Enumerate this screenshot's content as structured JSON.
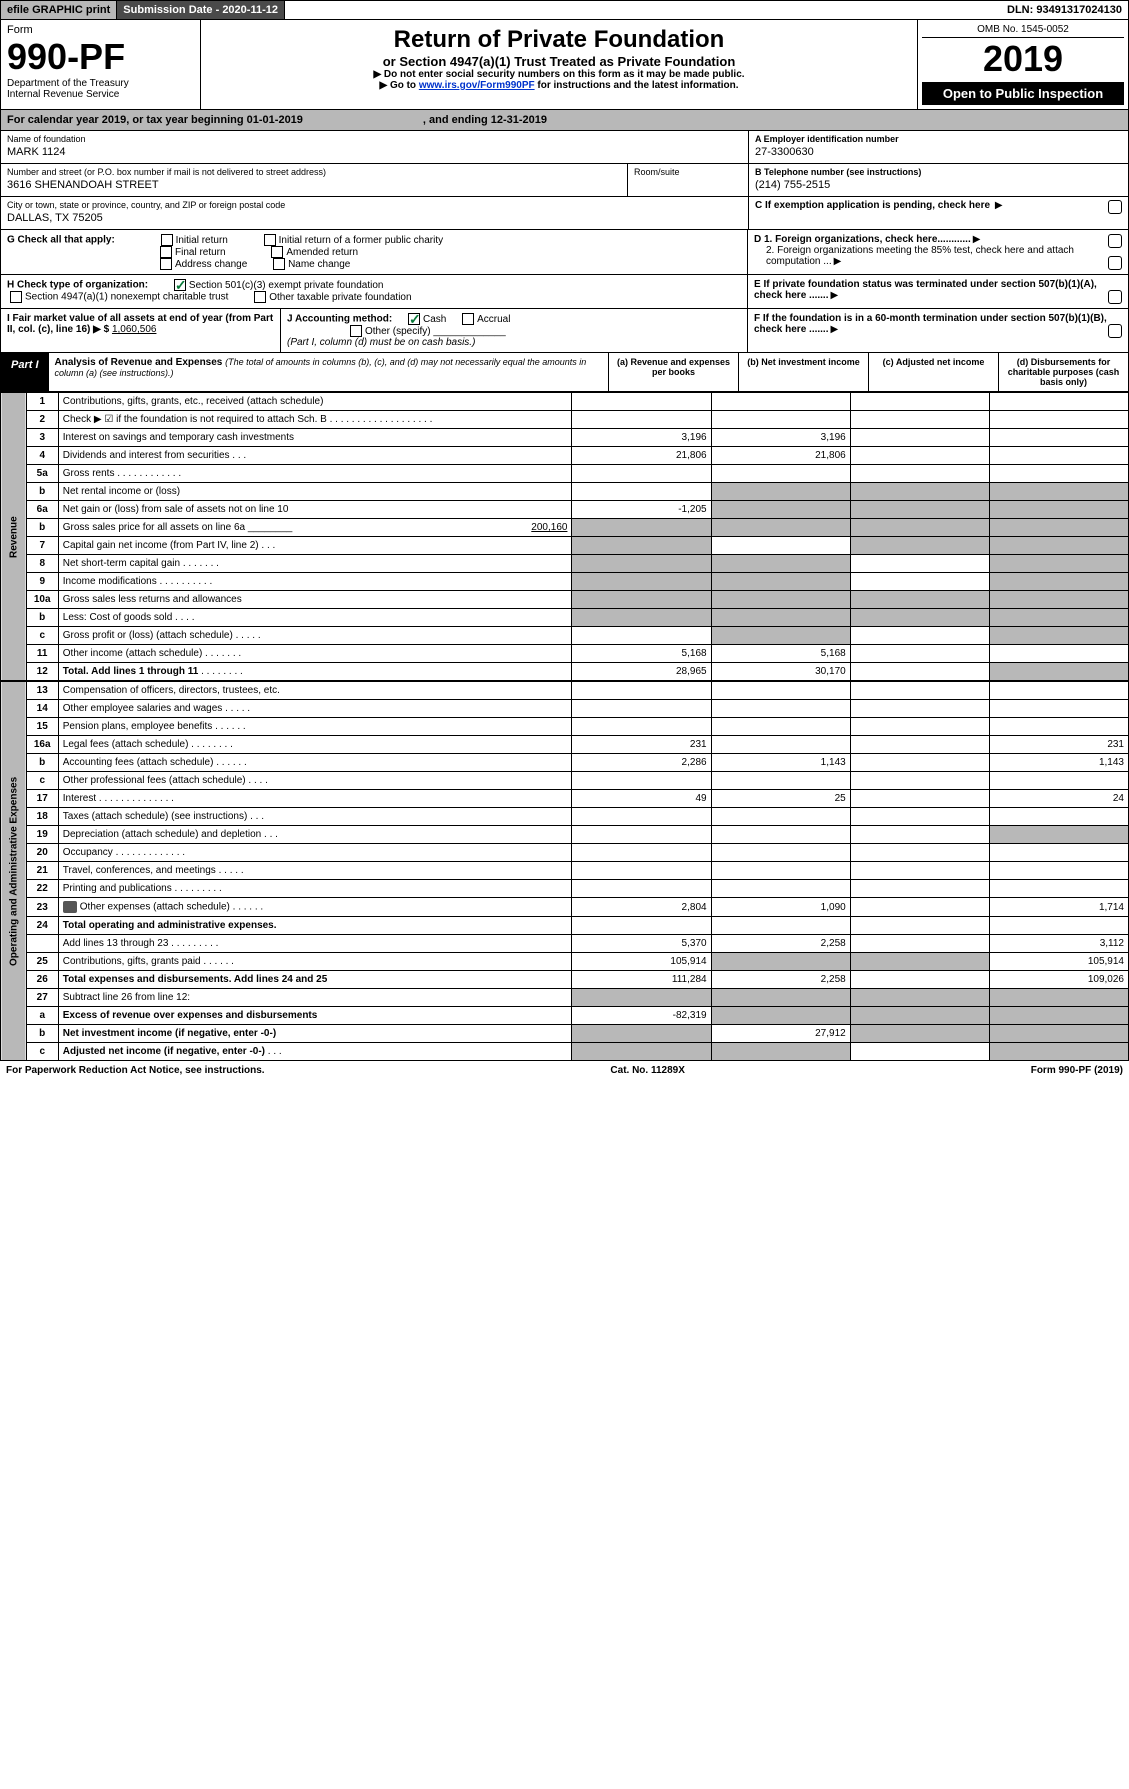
{
  "topbar": {
    "efile": "efile GRAPHIC print",
    "subdate_label": "Submission Date - 2020-11-12",
    "dln": "DLN: 93491317024130"
  },
  "header": {
    "form_word": "Form",
    "form_no": "990-PF",
    "dept": "Department of the Treasury",
    "irs": "Internal Revenue Service",
    "title": "Return of Private Foundation",
    "subtitle": "or Section 4947(a)(1) Trust Treated as Private Foundation",
    "warn1": "▶ Do not enter social security numbers on this form as it may be made public.",
    "warn2_pre": "▶ Go to ",
    "warn2_link": "www.irs.gov/Form990PF",
    "warn2_post": " for instructions and the latest information.",
    "omb": "OMB No. 1545-0052",
    "year": "2019",
    "open": "Open to Public Inspection"
  },
  "caly": {
    "text": "For calendar year 2019, or tax year beginning 01-01-2019",
    "end": ", and ending 12-31-2019"
  },
  "info": {
    "name_lbl": "Name of foundation",
    "name": "MARK 1124",
    "addr_lbl": "Number and street (or P.O. box number if mail is not delivered to street address)",
    "addr": "3616 SHENANDOAH STREET",
    "room_lbl": "Room/suite",
    "city_lbl": "City or town, state or province, country, and ZIP or foreign postal code",
    "city": "DALLAS, TX  75205",
    "a_lbl": "A Employer identification number",
    "a_val": "27-3300630",
    "b_lbl": "B Telephone number (see instructions)",
    "b_val": "(214) 755-2515",
    "c_lbl": "C If exemption application is pending, check here",
    "d1": "D 1. Foreign organizations, check here............",
    "d2": "2. Foreign organizations meeting the 85% test, check here and attach computation ...",
    "e_lbl": "E  If private foundation status was terminated under section 507(b)(1)(A), check here .......",
    "f_lbl": "F  If the foundation is in a 60-month termination under section 507(b)(1)(B), check here .......",
    "g_lbl": "G Check all that apply:",
    "g_initial": "Initial return",
    "g_initial_former": "Initial return of a former public charity",
    "g_final": "Final return",
    "g_amended": "Amended return",
    "g_addr": "Address change",
    "g_name": "Name change",
    "h_lbl": "H Check type of organization:",
    "h_501c3": "Section 501(c)(3) exempt private foundation",
    "h_4947": "Section 4947(a)(1) nonexempt charitable trust",
    "h_other": "Other taxable private foundation",
    "i_lbl": "I Fair market value of all assets at end of year (from Part II, col. (c), line 16) ▶ $",
    "i_val": "1,060,506",
    "j_lbl": "J Accounting method:",
    "j_cash": "Cash",
    "j_accrual": "Accrual",
    "j_other": "Other (specify)",
    "j_note": "(Part I, column (d) must be on cash basis.)"
  },
  "part1": {
    "label": "Part I",
    "title": "Analysis of Revenue and Expenses",
    "note": "(The total of amounts in columns (b), (c), and (d) may not necessarily equal the amounts in column (a) (see instructions).)",
    "col_a": "(a)   Revenue and expenses per books",
    "col_b": "(b)  Net investment income",
    "col_c": "(c)  Adjusted net income",
    "col_d": "(d)  Disbursements for charitable purposes (cash basis only)"
  },
  "revenue_label": "Revenue",
  "expenses_label": "Operating and Administrative Expenses",
  "rows": [
    {
      "n": "1",
      "d": "Contributions, gifts, grants, etc., received (attach schedule)",
      "a": "",
      "b": "",
      "c": "",
      "dd": ""
    },
    {
      "n": "2",
      "d": "Check ▶ ☑ if the foundation is not required to attach Sch. B",
      "dots": ". . . . . . . . . . . . . . . . . . .",
      "a": "",
      "b": "",
      "c": "",
      "dd": ""
    },
    {
      "n": "3",
      "d": "Interest on savings and temporary cash investments",
      "a": "3,196",
      "b": "3,196",
      "c": "",
      "dd": ""
    },
    {
      "n": "4",
      "d": "Dividends and interest from securities",
      "dots": ". . .",
      "a": "21,806",
      "b": "21,806",
      "c": "",
      "dd": ""
    },
    {
      "n": "5a",
      "d": "Gross rents",
      "dots": ". . . . . . . . . . . .",
      "a": "",
      "b": "",
      "c": "",
      "dd": ""
    },
    {
      "n": "b",
      "d": "Net rental income or (loss)",
      "a": "",
      "b": "",
      "c": "",
      "dd": "",
      "grey_bcd": true
    },
    {
      "n": "6a",
      "d": "Net gain or (loss) from sale of assets not on line 10",
      "a": "-1,205",
      "b": "",
      "c": "",
      "dd": "",
      "grey_bcd": true
    },
    {
      "n": "b",
      "d": "Gross sales price for all assets on line 6a ________",
      "d2": "200,160",
      "a": "",
      "b": "",
      "c": "",
      "dd": "",
      "grey_all": true
    },
    {
      "n": "7",
      "d": "Capital gain net income (from Part IV, line 2)",
      "dots": ". . .",
      "a": "",
      "b": "",
      "c": "",
      "dd": "",
      "grey_a": true,
      "grey_cd": true
    },
    {
      "n": "8",
      "d": "Net short-term capital gain",
      "dots": ". . . . . . .",
      "a": "",
      "b": "",
      "c": "",
      "dd": "",
      "grey_ab": true,
      "grey_d": true
    },
    {
      "n": "9",
      "d": "Income modifications",
      "dots": ". . . . . . . . . .",
      "a": "",
      "b": "",
      "c": "",
      "dd": "",
      "grey_ab": true,
      "grey_d": true
    },
    {
      "n": "10a",
      "d": "Gross sales less returns and allowances",
      "a": "",
      "b": "",
      "c": "",
      "dd": "",
      "grey_all": true
    },
    {
      "n": "b",
      "d": "Less: Cost of goods sold",
      "dots": ". . . .",
      "a": "",
      "b": "",
      "c": "",
      "dd": "",
      "grey_all": true
    },
    {
      "n": "c",
      "d": "Gross profit or (loss) (attach schedule)",
      "dots": ". . . . .",
      "a": "",
      "b": "",
      "c": "",
      "dd": "",
      "grey_b": true,
      "grey_d": true
    },
    {
      "n": "11",
      "d": "Other income (attach schedule)",
      "dots": ". . . . . . .",
      "a": "5,168",
      "b": "5,168",
      "c": "",
      "dd": ""
    },
    {
      "n": "12",
      "d": "Total. Add lines 1 through 11",
      "dots": ". . . . . . . .",
      "bold": true,
      "a": "28,965",
      "b": "30,170",
      "c": "",
      "dd": "",
      "grey_d": true
    }
  ],
  "exp_rows": [
    {
      "n": "13",
      "d": "Compensation of officers, directors, trustees, etc.",
      "a": "",
      "b": "",
      "c": "",
      "dd": ""
    },
    {
      "n": "14",
      "d": "Other employee salaries and wages",
      "dots": ". . . . .",
      "a": "",
      "b": "",
      "c": "",
      "dd": ""
    },
    {
      "n": "15",
      "d": "Pension plans, employee benefits",
      "dots": ". . . . . .",
      "a": "",
      "b": "",
      "c": "",
      "dd": ""
    },
    {
      "n": "16a",
      "d": "Legal fees (attach schedule)",
      "dots": ". . . . . . . .",
      "a": "231",
      "b": "",
      "c": "",
      "dd": "231"
    },
    {
      "n": "b",
      "d": "Accounting fees (attach schedule)",
      "dots": ". . . . . .",
      "a": "2,286",
      "b": "1,143",
      "c": "",
      "dd": "1,143"
    },
    {
      "n": "c",
      "d": "Other professional fees (attach schedule)",
      "dots": ". . . .",
      "a": "",
      "b": "",
      "c": "",
      "dd": ""
    },
    {
      "n": "17",
      "d": "Interest",
      "dots": ". . . . . . . . . . . . . .",
      "a": "49",
      "b": "25",
      "c": "",
      "dd": "24"
    },
    {
      "n": "18",
      "d": "Taxes (attach schedule) (see instructions)",
      "dots": ". . .",
      "a": "",
      "b": "",
      "c": "",
      "dd": ""
    },
    {
      "n": "19",
      "d": "Depreciation (attach schedule) and depletion",
      "dots": ". . .",
      "a": "",
      "b": "",
      "c": "",
      "dd": "",
      "grey_d": true
    },
    {
      "n": "20",
      "d": "Occupancy",
      "dots": ". . . . . . . . . . . . .",
      "a": "",
      "b": "",
      "c": "",
      "dd": ""
    },
    {
      "n": "21",
      "d": "Travel, conferences, and meetings",
      "dots": ". . . . .",
      "a": "",
      "b": "",
      "c": "",
      "dd": ""
    },
    {
      "n": "22",
      "d": "Printing and publications",
      "dots": ". . . . . . . . .",
      "a": "",
      "b": "",
      "c": "",
      "dd": ""
    },
    {
      "n": "23",
      "d": "Other expenses (attach schedule)",
      "dots": ". . . . . .",
      "icon": true,
      "a": "2,804",
      "b": "1,090",
      "c": "",
      "dd": "1,714"
    },
    {
      "n": "24",
      "d": "Total operating and administrative expenses.",
      "bold": true,
      "a": "",
      "b": "",
      "c": "",
      "dd": ""
    },
    {
      "n": "",
      "d": "Add lines 13 through 23",
      "dots": ". . . . . . . . .",
      "a": "5,370",
      "b": "2,258",
      "c": "",
      "dd": "3,112"
    },
    {
      "n": "25",
      "d": "Contributions, gifts, grants paid",
      "dots": ". . . . . .",
      "a": "105,914",
      "b": "",
      "c": "",
      "dd": "105,914",
      "grey_bc": true
    },
    {
      "n": "26",
      "d": "Total expenses and disbursements. Add lines 24 and 25",
      "bold": true,
      "a": "111,284",
      "b": "2,258",
      "c": "",
      "dd": "109,026"
    },
    {
      "n": "27",
      "d": "Subtract line 26 from line 12:",
      "a": "",
      "b": "",
      "c": "",
      "dd": "",
      "grey_all": true
    },
    {
      "n": "a",
      "d": "Excess of revenue over expenses and disbursements",
      "bold": true,
      "a": "-82,319",
      "b": "",
      "c": "",
      "dd": "",
      "grey_bcd": true
    },
    {
      "n": "b",
      "d": "Net investment income (if negative, enter -0-)",
      "bold": true,
      "a": "",
      "b": "27,912",
      "c": "",
      "dd": "",
      "grey_a": true,
      "grey_cd": true
    },
    {
      "n": "c",
      "d": "Adjusted net income (if negative, enter -0-)",
      "bold": true,
      "dots": ". . .",
      "a": "",
      "b": "",
      "c": "",
      "dd": "",
      "grey_ab": true,
      "grey_d": true
    }
  ],
  "footer": {
    "left": "For Paperwork Reduction Act Notice, see instructions.",
    "mid": "Cat. No. 11289X",
    "right": "Form 990-PF (2019)"
  }
}
